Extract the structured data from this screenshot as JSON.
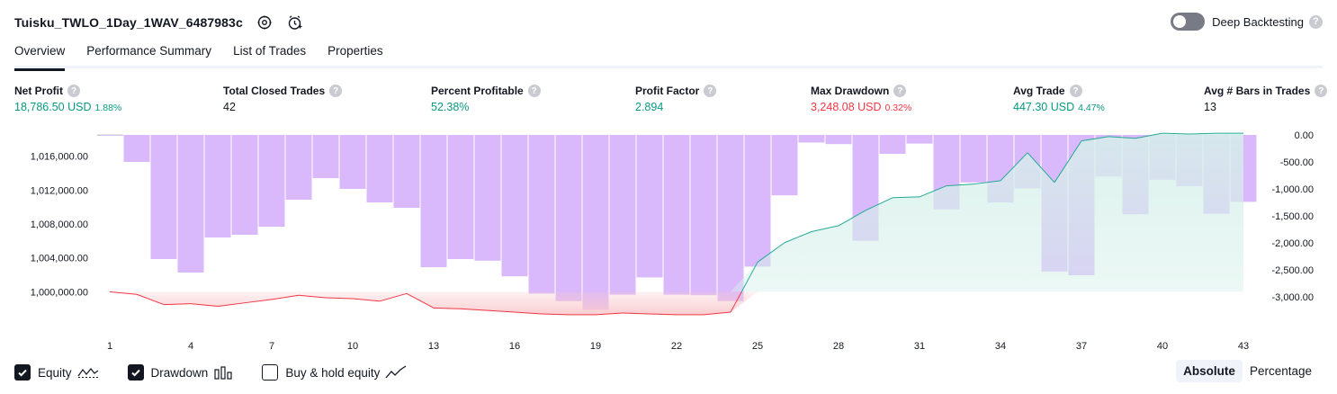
{
  "header": {
    "strategy_name": "Tuisku_TWLO_1Day_1WAV_6487983c",
    "deep_backtesting_label": "Deep Backtesting",
    "deep_backtesting_enabled": false,
    "help_glyph": "?"
  },
  "tabs": [
    {
      "label": "Overview",
      "active": true
    },
    {
      "label": "Performance Summary",
      "active": false
    },
    {
      "label": "List of Trades",
      "active": false
    },
    {
      "label": "Properties",
      "active": false
    }
  ],
  "metrics": {
    "net_profit": {
      "label": "Net Profit",
      "value": "18,786.50 USD",
      "pct": "1.88%"
    },
    "total_closed_trades": {
      "label": "Total Closed Trades",
      "value": "42"
    },
    "percent_profitable": {
      "label": "Percent Profitable",
      "value": "52.38%"
    },
    "profit_factor": {
      "label": "Profit Factor",
      "value": "2.894"
    },
    "max_drawdown": {
      "label": "Max Drawdown",
      "value": "3,248.08 USD",
      "pct": "0.32%"
    },
    "avg_trade": {
      "label": "Avg Trade",
      "value": "447.30 USD",
      "pct": "4.47%"
    },
    "avg_bars": {
      "label": "Avg # Bars in Trades",
      "value": "13"
    }
  },
  "colors": {
    "profit": "#089981",
    "loss": "#f23645",
    "drawdown_bar": "#d9b8fb",
    "equity_line": "#22ab94",
    "equity_fill": "#d6f0ea",
    "loss_fill": "#f9c8cc"
  },
  "chart_data": {
    "type": "area",
    "x": [
      1,
      2,
      3,
      4,
      5,
      6,
      7,
      8,
      9,
      10,
      11,
      12,
      13,
      14,
      15,
      16,
      17,
      18,
      19,
      20,
      21,
      22,
      23,
      24,
      25,
      26,
      27,
      28,
      29,
      30,
      31,
      32,
      33,
      34,
      35,
      36,
      37,
      38,
      39,
      40,
      41,
      42,
      43
    ],
    "x_ticks": [
      "1",
      "4",
      "7",
      "10",
      "13",
      "16",
      "19",
      "22",
      "25",
      "28",
      "31",
      "34",
      "37",
      "40",
      "43"
    ],
    "equity_baseline": 1000000,
    "left_axis": {
      "ticks": [
        "1,016,000.00",
        "1,012,000.00",
        "1,008,000.00",
        "1,004,000.00",
        "1,000,000.00"
      ],
      "ylim": [
        997500,
        1018500
      ]
    },
    "right_axis": {
      "ticks": [
        "0.00",
        "-500.00",
        "-1,000.00",
        "-1,500.00",
        "-2,000.00",
        "-2,500.00",
        "-3,000.00"
      ],
      "ylim": [
        -3300,
        0
      ]
    },
    "series": [
      {
        "name": "Equity",
        "axis": "left",
        "values": [
          1000000,
          999700,
          998500,
          998600,
          998300,
          998700,
          999100,
          999600,
          999300,
          999200,
          998900,
          999800,
          998100,
          998000,
          997800,
          997600,
          997400,
          997300,
          997300,
          997500,
          997400,
          997300,
          997300,
          997600,
          1003500,
          1005800,
          1007100,
          1007800,
          1009600,
          1011100,
          1011200,
          1012500,
          1012700,
          1013100,
          1016400,
          1012900,
          1017800,
          1018300,
          1018100,
          1018700,
          1018600,
          1018700,
          1018700
        ]
      },
      {
        "name": "Drawdown",
        "axis": "right",
        "values": [
          0,
          -500,
          -2300,
          -2550,
          -1900,
          -1850,
          -1700,
          -1200,
          -800,
          -1000,
          -1250,
          -1350,
          -2450,
          -2300,
          -2330,
          -2620,
          -2940,
          -3080,
          -3240,
          -2960,
          -2640,
          -2960,
          -2970,
          -3080,
          -2440,
          -1120,
          -140,
          -170,
          -1960,
          -350,
          -160,
          -1380,
          -880,
          -1250,
          -990,
          -2530,
          -2600,
          -770,
          -1470,
          -830,
          -950,
          -1460,
          -1240
        ]
      }
    ]
  },
  "footer": {
    "legend": [
      {
        "label": "Equity",
        "checked": true,
        "icon": "equity-line-icon"
      },
      {
        "label": "Drawdown",
        "checked": true,
        "icon": "drawdown-bars-icon"
      },
      {
        "label": "Buy & hold equity",
        "checked": false,
        "icon": "buy-hold-line-icon"
      }
    ],
    "modes": [
      {
        "label": "Absolute",
        "active": true
      },
      {
        "label": "Percentage",
        "active": false
      }
    ]
  }
}
